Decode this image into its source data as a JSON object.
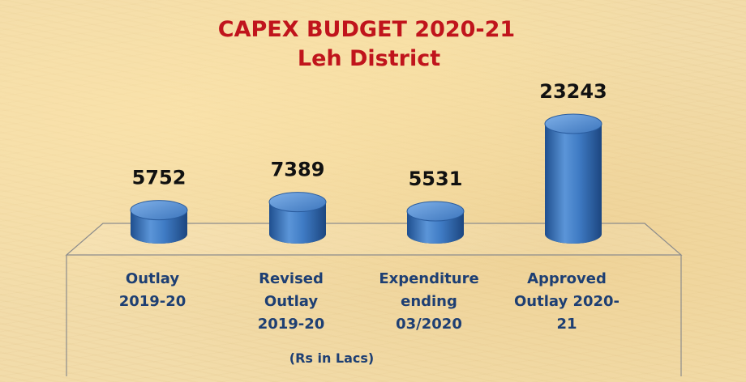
{
  "chart_data": {
    "type": "bar",
    "title": "CAPEX BUDGET 2020-21",
    "subtitle": "Leh District",
    "xlabel": "(Rs in Lacs)",
    "ylabel": "",
    "categories": [
      [
        "Outlay",
        "2019-20"
      ],
      [
        "Revised",
        "Outlay",
        "2019-20"
      ],
      [
        "Expenditure",
        "ending",
        "03/2020"
      ],
      [
        "Approved",
        "Outlay 2020-",
        "21"
      ]
    ],
    "values": [
      5752,
      7389,
      5531,
      23243
    ],
    "value_labels": [
      "5752",
      "7389",
      "5531",
      "23243"
    ],
    "ylim": [
      0,
      23243
    ],
    "grid": false,
    "legend": "none",
    "style": "3d-cylinder",
    "colors": {
      "bar": "#3f7bc4",
      "bar_dark": "#1f4f8f",
      "bar_top": "#5b95d8",
      "title": "#c0141c",
      "category_text": "#1e3f73",
      "value_text": "#111111",
      "floor_edge": "#8c8c8c"
    }
  }
}
